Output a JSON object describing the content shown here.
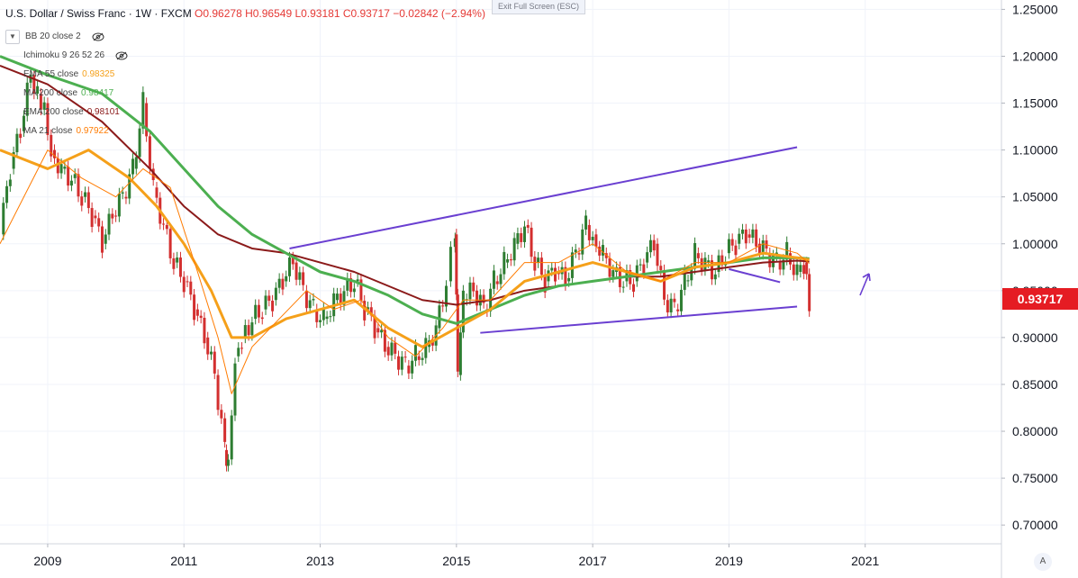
{
  "header": {
    "symbol": "U.S. Dollar / Swiss Franc · 1W · FXCM",
    "ohlc": "O0.96278 H0.96549 L0.93181 C0.93717 −0.02842 (−2.94%)"
  },
  "exit_fullscreen": "Exit Full Screen (ESC)",
  "collapse_icon": "chevron-down-icon",
  "indicators": [
    {
      "name": "BB 20 close 2",
      "value": "",
      "color": "#555555",
      "hidden": true
    },
    {
      "name": "Ichimoku 9 26 52 26",
      "value": "",
      "color": "#555555",
      "hidden": true
    },
    {
      "name": "EMA 55 close",
      "value": "0.98325",
      "color": "#f5a01a",
      "hidden": false
    },
    {
      "name": "MA 200 close",
      "value": "0.98417",
      "color": "#4caf50",
      "hidden": false
    },
    {
      "name": "EMA 200 close",
      "value": "0.98101",
      "color": "#8b1a1a",
      "hidden": false
    },
    {
      "name": "MA 21 close",
      "value": "0.97922",
      "color": "#ff7b00",
      "hidden": false
    }
  ],
  "last_price_label": "0.93717",
  "auto_scale_label": "A",
  "colors": {
    "up": "#2e7d32",
    "down": "#d32f2f",
    "ema55": "#f5a01a",
    "ma200": "#4caf50",
    "ema200": "#8b1a1a",
    "ma21": "#ff7b00",
    "trendline": "#6a3fd1",
    "last_price": "#e51c23"
  },
  "chart_data": {
    "type": "line",
    "title": "U.S. Dollar / Swiss Franc · 1W · FXCM",
    "price_axis": {
      "ticks": [
        "1.25000",
        "1.20000",
        "1.15000",
        "1.10000",
        "1.05000",
        "1.00000",
        "0.95000",
        "0.90000",
        "0.85000",
        "0.80000",
        "0.75000",
        "0.70000"
      ],
      "ylim": [
        0.68,
        1.26
      ]
    },
    "time_axis": {
      "ticks": [
        "2009",
        "2011",
        "2013",
        "2015",
        "2017",
        "2019",
        "2021"
      ],
      "xlim": [
        2008.3,
        2023.0
      ]
    },
    "price_series": {
      "name": "USD/CHF",
      "x": [
        2008.3,
        2008.45,
        2008.6,
        2008.75,
        2008.85,
        2008.95,
        2009.05,
        2009.2,
        2009.35,
        2009.5,
        2009.65,
        2009.8,
        2009.95,
        2010.1,
        2010.25,
        2010.4,
        2010.55,
        2010.7,
        2010.85,
        2011.0,
        2011.15,
        2011.3,
        2011.45,
        2011.6,
        2011.65,
        2011.75,
        2011.85,
        2012.0,
        2012.15,
        2012.3,
        2012.45,
        2012.6,
        2012.75,
        2012.9,
        2013.05,
        2013.2,
        2013.35,
        2013.5,
        2013.65,
        2013.8,
        2013.95,
        2014.1,
        2014.25,
        2014.4,
        2014.55,
        2014.7,
        2014.85,
        2014.98,
        2015.02,
        2015.1,
        2015.25,
        2015.4,
        2015.55,
        2015.7,
        2015.85,
        2016.0,
        2016.15,
        2016.3,
        2016.45,
        2016.6,
        2016.75,
        2016.9,
        2017.0,
        2017.15,
        2017.3,
        2017.45,
        2017.6,
        2017.75,
        2017.9,
        2018.05,
        2018.2,
        2018.35,
        2018.5,
        2018.65,
        2018.8,
        2018.95,
        2019.1,
        2019.25,
        2019.4,
        2019.55,
        2019.7,
        2019.85,
        2020.0,
        2020.1,
        2020.18
      ],
      "close": [
        1.01,
        1.08,
        1.12,
        1.18,
        1.16,
        1.15,
        1.1,
        1.08,
        1.07,
        1.05,
        1.03,
        1.0,
        1.03,
        1.05,
        1.08,
        1.15,
        1.06,
        1.02,
        0.98,
        0.96,
        0.93,
        0.9,
        0.86,
        0.78,
        0.77,
        0.88,
        0.9,
        0.92,
        0.93,
        0.94,
        0.96,
        0.98,
        0.95,
        0.93,
        0.92,
        0.94,
        0.95,
        0.96,
        0.93,
        0.91,
        0.89,
        0.88,
        0.87,
        0.88,
        0.89,
        0.91,
        0.96,
        1.01,
        0.86,
        0.94,
        0.95,
        0.93,
        0.96,
        0.98,
        1.0,
        1.02,
        0.98,
        0.96,
        0.97,
        0.96,
        0.99,
        1.02,
        1.01,
        0.99,
        0.97,
        0.96,
        0.96,
        0.98,
        1.0,
        0.94,
        0.93,
        0.96,
        0.99,
        0.98,
        0.97,
        0.99,
        1.0,
        1.01,
        1.0,
        0.99,
        0.98,
        0.99,
        0.97,
        0.98,
        0.937
      ]
    },
    "ma21": {
      "name": "MA 21 close",
      "x": [
        2008.3,
        2009.0,
        2009.5,
        2010.0,
        2010.4,
        2010.8,
        2011.2,
        2011.5,
        2011.7,
        2012.0,
        2012.4,
        2012.8,
        2013.2,
        2013.6,
        2014.0,
        2014.4,
        2014.8,
        2015.1,
        2015.5,
        2016.0,
        2016.5,
        2017.0,
        2017.5,
        2018.0,
        2018.5,
        2019.0,
        2019.5,
        2020.0,
        2020.18
      ],
      "y": [
        1.0,
        1.1,
        1.07,
        1.05,
        1.08,
        1.06,
        0.97,
        0.9,
        0.84,
        0.89,
        0.92,
        0.95,
        0.93,
        0.94,
        0.9,
        0.88,
        0.91,
        0.94,
        0.94,
        0.98,
        0.98,
        1.0,
        0.97,
        0.96,
        0.98,
        0.98,
        1.0,
        0.99,
        0.979
      ]
    },
    "ema55": {
      "name": "EMA 55 close",
      "x": [
        2008.3,
        2009.0,
        2009.6,
        2010.2,
        2010.6,
        2011.0,
        2011.4,
        2011.7,
        2012.0,
        2012.5,
        2013.0,
        2013.5,
        2014.0,
        2014.5,
        2015.0,
        2015.5,
        2016.0,
        2016.5,
        2017.0,
        2017.5,
        2018.0,
        2018.5,
        2019.0,
        2019.5,
        2020.0,
        2020.18
      ],
      "y": [
        1.1,
        1.08,
        1.1,
        1.07,
        1.04,
        1.0,
        0.95,
        0.9,
        0.9,
        0.92,
        0.93,
        0.94,
        0.91,
        0.89,
        0.91,
        0.93,
        0.96,
        0.97,
        0.98,
        0.97,
        0.96,
        0.975,
        0.98,
        0.99,
        0.985,
        0.983
      ]
    },
    "ma200": {
      "name": "MA 200 close",
      "x": [
        2008.3,
        2009.0,
        2009.8,
        2010.5,
        2011.0,
        2011.5,
        2012.0,
        2012.5,
        2013.0,
        2013.5,
        2014.0,
        2014.5,
        2015.0,
        2015.5,
        2016.0,
        2016.5,
        2017.0,
        2017.5,
        2018.0,
        2018.5,
        2019.0,
        2019.5,
        2020.0,
        2020.18
      ],
      "y": [
        1.2,
        1.18,
        1.16,
        1.12,
        1.08,
        1.04,
        1.01,
        0.99,
        0.97,
        0.96,
        0.945,
        0.925,
        0.915,
        0.93,
        0.945,
        0.955,
        0.96,
        0.965,
        0.97,
        0.975,
        0.98,
        0.985,
        0.985,
        0.984
      ]
    },
    "ema200": {
      "name": "EMA 200 close",
      "x": [
        2008.3,
        2009.0,
        2009.8,
        2010.5,
        2011.0,
        2011.5,
        2012.0,
        2012.5,
        2013.0,
        2013.5,
        2014.0,
        2014.5,
        2015.0,
        2015.5,
        2016.0,
        2016.5,
        2017.0,
        2017.5,
        2018.0,
        2018.5,
        2019.0,
        2019.5,
        2020.0,
        2020.18
      ],
      "y": [
        1.19,
        1.17,
        1.13,
        1.08,
        1.04,
        1.01,
        0.995,
        0.99,
        0.98,
        0.97,
        0.955,
        0.94,
        0.935,
        0.94,
        0.95,
        0.955,
        0.96,
        0.965,
        0.965,
        0.97,
        0.975,
        0.98,
        0.982,
        0.981
      ]
    },
    "trendlines": [
      {
        "from": [
          2012.55,
          0.995
        ],
        "to": [
          2020.0,
          1.103
        ]
      },
      {
        "from": [
          2015.35,
          0.905
        ],
        "to": [
          2020.0,
          0.933
        ]
      },
      {
        "from": [
          2019.0,
          0.973
        ],
        "to": [
          2019.75,
          0.959
        ]
      }
    ]
  }
}
